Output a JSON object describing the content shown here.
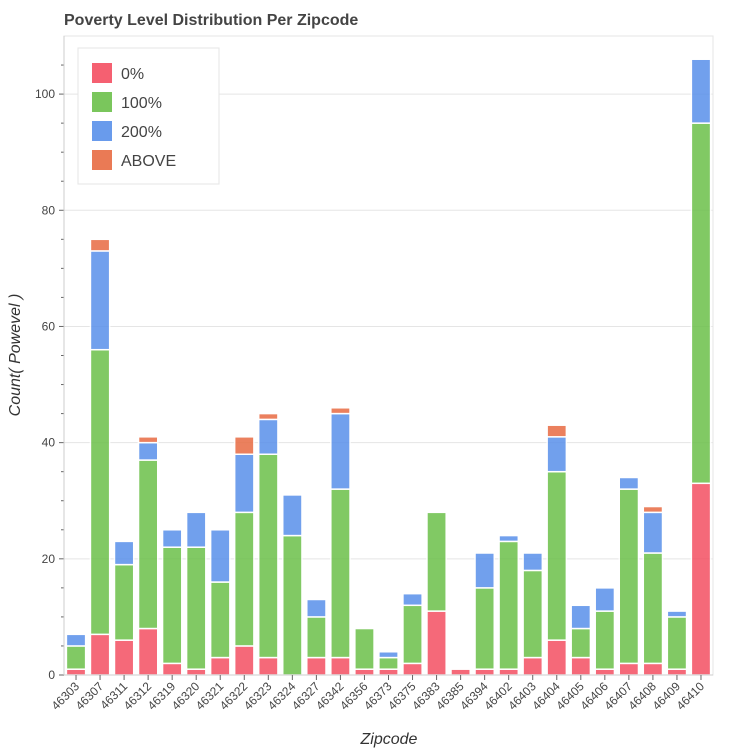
{
  "chart_data": {
    "type": "bar",
    "stacked": true,
    "title": "Poverty Level Distribution Per Zipcode",
    "xlabel": "Zipcode",
    "ylabel": "Count( Powevel )",
    "ylim": [
      0,
      110
    ],
    "yticks": [
      0,
      20,
      40,
      60,
      80,
      100
    ],
    "grid": "horizontal",
    "legend_position": "top-left",
    "categories": [
      "46303",
      "46307",
      "46311",
      "46312",
      "46319",
      "46320",
      "46321",
      "46322",
      "46323",
      "46324",
      "46327",
      "46342",
      "46356",
      "46373",
      "46375",
      "46383",
      "46385",
      "46394",
      "46402",
      "46403",
      "46404",
      "46405",
      "46406",
      "46407",
      "46408",
      "46409",
      "46410"
    ],
    "series": [
      {
        "name": "0%",
        "color": "#f44f62",
        "values": [
          1,
          7,
          6,
          8,
          2,
          1,
          3,
          5,
          3,
          0,
          3,
          3,
          1,
          1,
          2,
          11,
          1,
          1,
          1,
          3,
          6,
          3,
          1,
          2,
          2,
          1,
          33
        ]
      },
      {
        "name": "100%",
        "color": "#6cc04a",
        "values": [
          4,
          49,
          13,
          29,
          20,
          21,
          13,
          23,
          35,
          24,
          7,
          29,
          7,
          2,
          10,
          17,
          0,
          14,
          22,
          15,
          29,
          5,
          10,
          30,
          19,
          9,
          62
        ]
      },
      {
        "name": "200%",
        "color": "#5990ea",
        "values": [
          2,
          17,
          4,
          3,
          3,
          6,
          9,
          10,
          6,
          7,
          3,
          13,
          0,
          1,
          2,
          0,
          0,
          6,
          1,
          3,
          6,
          4,
          4,
          2,
          7,
          1,
          11
        ]
      },
      {
        "name": "ABOVE",
        "color": "#e86b42",
        "values": [
          0,
          2,
          0,
          1,
          0,
          0,
          0,
          3,
          1,
          0,
          0,
          1,
          0,
          0,
          0,
          0,
          0,
          0,
          0,
          0,
          2,
          0,
          0,
          0,
          1,
          0,
          0
        ]
      }
    ]
  }
}
